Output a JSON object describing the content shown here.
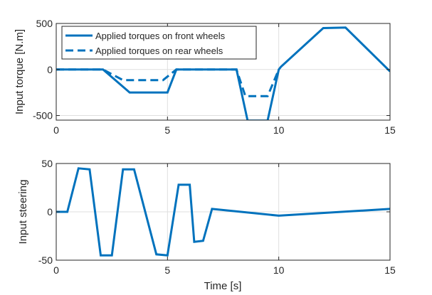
{
  "chart_data": [
    {
      "type": "line",
      "ylabel": "Input torque [N.m]",
      "xlabel": "",
      "xlim": [
        0,
        15
      ],
      "ylim": [
        -550,
        500
      ],
      "xticks": [
        0,
        5,
        10,
        15
      ],
      "yticks": [
        -500,
        0,
        500
      ],
      "grid": true,
      "legend": "top-left",
      "series": [
        {
          "name": "Applied torques on front wheels",
          "color": "#0072BD",
          "style": "solid",
          "x": [
            0,
            2.1,
            3.3,
            5.0,
            5.4,
            8.1,
            8.6,
            9.5,
            10.0,
            10.1,
            12.0,
            13.0,
            15.0
          ],
          "y": [
            0,
            0,
            -250,
            -250,
            0,
            0,
            -555,
            -555,
            0,
            30,
            450,
            455,
            -20
          ]
        },
        {
          "name": "Applied torques on rear wheels",
          "color": "#0072BD",
          "style": "dashed",
          "x": [
            0,
            2.1,
            3.0,
            4.8,
            5.4,
            8.1,
            8.5,
            9.5,
            10.0
          ],
          "y": [
            0,
            0,
            -115,
            -115,
            0,
            0,
            -290,
            -290,
            0
          ]
        }
      ]
    },
    {
      "type": "line",
      "ylabel": "Input steering",
      "xlabel": "Time [s]",
      "xlim": [
        0,
        15
      ],
      "ylim": [
        -50,
        50
      ],
      "xticks": [
        0,
        5,
        10,
        15
      ],
      "yticks": [
        -50,
        0,
        50
      ],
      "grid": true,
      "series": [
        {
          "color": "#0072BD",
          "style": "solid",
          "x": [
            0,
            0.5,
            1.0,
            1.5,
            2.0,
            2.5,
            3.0,
            3.5,
            4.5,
            5.0,
            5.5,
            6.0,
            6.2,
            6.6,
            7.0,
            10.0,
            15.0
          ],
          "y": [
            0,
            0,
            45,
            44,
            -45,
            -45,
            44,
            44,
            -44,
            -45,
            28,
            28,
            -31,
            -30,
            3,
            -4,
            3
          ]
        }
      ]
    }
  ]
}
